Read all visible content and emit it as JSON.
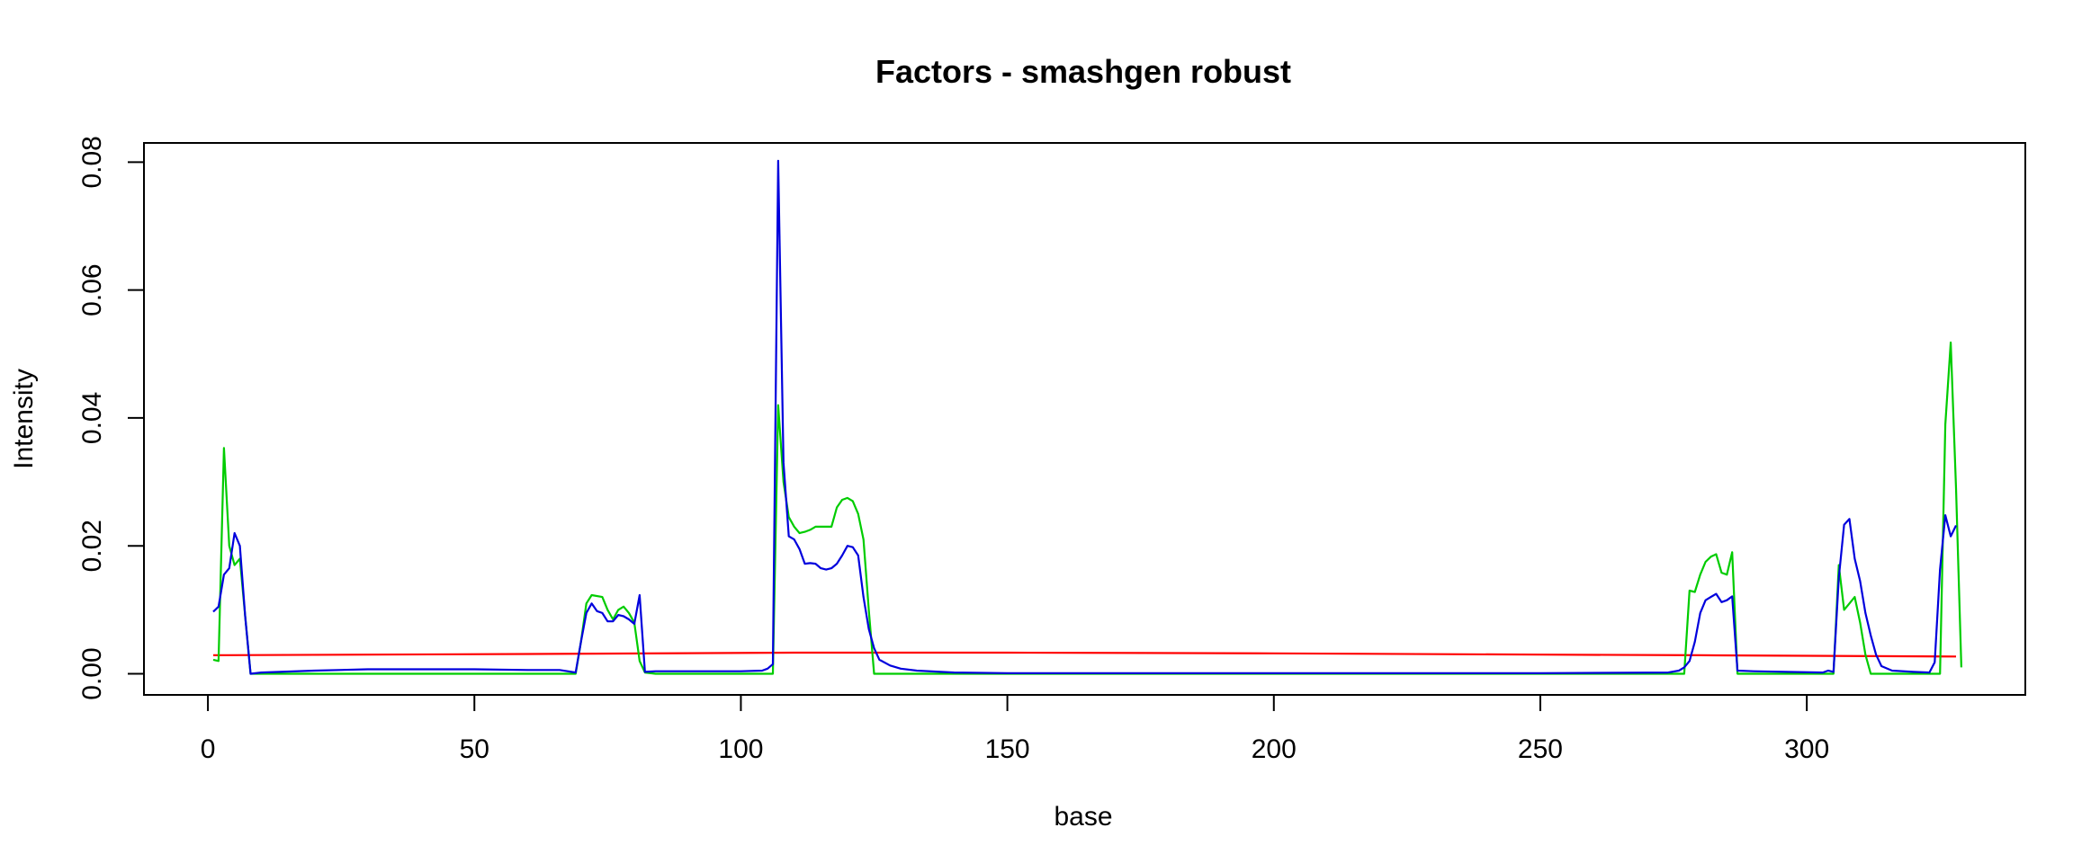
{
  "chart_data": {
    "type": "line",
    "title": "Factors - smashgen robust",
    "xlabel": "base",
    "ylabel": "Intensity",
    "xlim": [
      -12,
      341
    ],
    "ylim": [
      -0.0033,
      0.083
    ],
    "xticks": [
      0,
      50,
      100,
      150,
      200,
      250,
      300
    ],
    "yticks": [
      0.0,
      0.02,
      0.04,
      0.06,
      0.08
    ],
    "xtick_labels": [
      "0",
      "50",
      "100",
      "150",
      "200",
      "250",
      "300"
    ],
    "ytick_labels": [
      "0.00",
      "0.02",
      "0.04",
      "0.06",
      "0.08"
    ],
    "grid": false,
    "legend": null,
    "series": [
      {
        "color": "#ff0000",
        "points": [
          [
            1,
            0.0029
          ],
          [
            60,
            0.0031
          ],
          [
            110,
            0.0033
          ],
          [
            150,
            0.0033
          ],
          [
            200,
            0.0032
          ],
          [
            250,
            0.003
          ],
          [
            280,
            0.0029
          ],
          [
            328,
            0.0027
          ]
        ]
      },
      {
        "color": "#00cc00",
        "points": [
          [
            1,
            0.0022
          ],
          [
            2,
            0.002
          ],
          [
            3,
            0.0353
          ],
          [
            4,
            0.02
          ],
          [
            5,
            0.017
          ],
          [
            6,
            0.018
          ],
          [
            7,
            0.009
          ],
          [
            8,
            0.0
          ],
          [
            30,
            0.0
          ],
          [
            50,
            0.0
          ],
          [
            69,
            0.0
          ],
          [
            70,
            0.005
          ],
          [
            71,
            0.011
          ],
          [
            72,
            0.0123
          ],
          [
            74,
            0.012
          ],
          [
            75,
            0.01
          ],
          [
            76,
            0.0085
          ],
          [
            77,
            0.01
          ],
          [
            78,
            0.0105
          ],
          [
            79,
            0.0095
          ],
          [
            80,
            0.008
          ],
          [
            81,
            0.002
          ],
          [
            82,
            0.0002
          ],
          [
            84,
            0.0
          ],
          [
            106,
            0.0
          ],
          [
            107,
            0.042
          ],
          [
            108,
            0.03
          ],
          [
            109,
            0.0245
          ],
          [
            110,
            0.023
          ],
          [
            111,
            0.022
          ],
          [
            112,
            0.0222
          ],
          [
            113,
            0.0225
          ],
          [
            114,
            0.023
          ],
          [
            117,
            0.023
          ],
          [
            118,
            0.026
          ],
          [
            119,
            0.0272
          ],
          [
            120,
            0.0275
          ],
          [
            121,
            0.027
          ],
          [
            122,
            0.025
          ],
          [
            123,
            0.021
          ],
          [
            124,
            0.01
          ],
          [
            125,
            0.0
          ],
          [
            200,
            0.0
          ],
          [
            277,
            0.0
          ],
          [
            278,
            0.013
          ],
          [
            279,
            0.0128
          ],
          [
            280,
            0.0155
          ],
          [
            281,
            0.0175
          ],
          [
            282,
            0.0183
          ],
          [
            283,
            0.0187
          ],
          [
            284,
            0.0158
          ],
          [
            285,
            0.0155
          ],
          [
            286,
            0.019
          ],
          [
            287,
            0.0
          ],
          [
            305,
            0.0
          ],
          [
            306,
            0.017
          ],
          [
            307,
            0.01
          ],
          [
            308,
            0.011
          ],
          [
            309,
            0.012
          ],
          [
            310,
            0.008
          ],
          [
            311,
            0.003
          ],
          [
            312,
            0.0
          ],
          [
            325,
            0.0
          ],
          [
            326,
            0.039
          ],
          [
            327,
            0.0518
          ],
          [
            328,
            0.029
          ],
          [
            329,
            0.001
          ]
        ]
      },
      {
        "color": "#0000dd",
        "points": [
          [
            1,
            0.0097
          ],
          [
            2,
            0.0105
          ],
          [
            3,
            0.0155
          ],
          [
            4,
            0.0165
          ],
          [
            5,
            0.022
          ],
          [
            6,
            0.02
          ],
          [
            7,
            0.009
          ],
          [
            8,
            0.0
          ],
          [
            10,
            0.0002
          ],
          [
            20,
            0.0005
          ],
          [
            30,
            0.0007
          ],
          [
            40,
            0.0007
          ],
          [
            50,
            0.0007
          ],
          [
            60,
            0.0006
          ],
          [
            66,
            0.0006
          ],
          [
            69,
            0.0002
          ],
          [
            70,
            0.005
          ],
          [
            71,
            0.0095
          ],
          [
            72,
            0.011
          ],
          [
            73,
            0.0098
          ],
          [
            74,
            0.0095
          ],
          [
            75,
            0.0082
          ],
          [
            76,
            0.0082
          ],
          [
            77,
            0.0092
          ],
          [
            78,
            0.009
          ],
          [
            79,
            0.0085
          ],
          [
            80,
            0.0078
          ],
          [
            81,
            0.0123
          ],
          [
            82,
            0.0003
          ],
          [
            84,
            0.0004
          ],
          [
            90,
            0.0004
          ],
          [
            100,
            0.0004
          ],
          [
            104,
            0.0005
          ],
          [
            105,
            0.0008
          ],
          [
            106,
            0.0015
          ],
          [
            107,
            0.0802
          ],
          [
            108,
            0.033
          ],
          [
            109,
            0.0215
          ],
          [
            110,
            0.021
          ],
          [
            111,
            0.0195
          ],
          [
            112,
            0.0172
          ],
          [
            113,
            0.0173
          ],
          [
            114,
            0.0172
          ],
          [
            115,
            0.0165
          ],
          [
            116,
            0.0163
          ],
          [
            117,
            0.0165
          ],
          [
            118,
            0.0172
          ],
          [
            119,
            0.0185
          ],
          [
            120,
            0.02
          ],
          [
            121,
            0.0198
          ],
          [
            122,
            0.0185
          ],
          [
            123,
            0.012
          ],
          [
            124,
            0.007
          ],
          [
            125,
            0.004
          ],
          [
            126,
            0.0022
          ],
          [
            128,
            0.0013
          ],
          [
            130,
            0.0008
          ],
          [
            133,
            0.0005
          ],
          [
            140,
            0.0002
          ],
          [
            150,
            0.0001
          ],
          [
            200,
            0.0001
          ],
          [
            250,
            0.0001
          ],
          [
            274,
            0.0002
          ],
          [
            276,
            0.0005
          ],
          [
            277,
            0.001
          ],
          [
            278,
            0.002
          ],
          [
            279,
            0.005
          ],
          [
            280,
            0.0095
          ],
          [
            281,
            0.0115
          ],
          [
            282,
            0.012
          ],
          [
            283,
            0.0125
          ],
          [
            284,
            0.0112
          ],
          [
            285,
            0.0115
          ],
          [
            286,
            0.0121
          ],
          [
            287,
            0.0005
          ],
          [
            290,
            0.0004
          ],
          [
            303,
            0.0002
          ],
          [
            304,
            0.0005
          ],
          [
            305,
            0.0003
          ],
          [
            306,
            0.015
          ],
          [
            307,
            0.0233
          ],
          [
            308,
            0.0242
          ],
          [
            309,
            0.018
          ],
          [
            310,
            0.0145
          ],
          [
            311,
            0.0095
          ],
          [
            312,
            0.006
          ],
          [
            313,
            0.003
          ],
          [
            314,
            0.0012
          ],
          [
            316,
            0.0005
          ],
          [
            320,
            0.0003
          ],
          [
            323,
            0.0002
          ],
          [
            324,
            0.0018
          ],
          [
            325,
            0.0163
          ],
          [
            326,
            0.0248
          ],
          [
            327,
            0.0215
          ],
          [
            328,
            0.0232
          ]
        ]
      }
    ]
  }
}
